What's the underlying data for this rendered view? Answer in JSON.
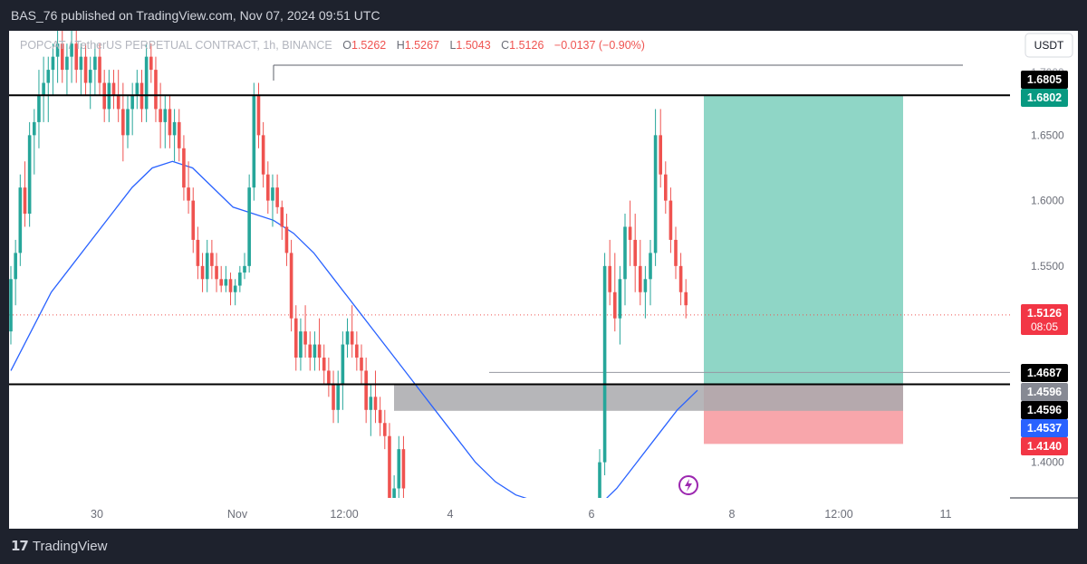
{
  "header": {
    "published": "BAS_76 published on TradingView.com, Nov 07, 2024 09:51 UTC"
  },
  "footer": {
    "brand": "TradingView"
  },
  "legend": {
    "symbol": "POPCAT / TetherUS PERPETUAL CONTRACT, 1h, BINANCE",
    "open_label": "O",
    "open": "1.5262",
    "high_label": "H",
    "high": "1.5267",
    "low_label": "L",
    "low": "1.5043",
    "close_label": "C",
    "close": "1.5126",
    "change": "−0.0137 (−0.90%)"
  },
  "currency_button": "USDT",
  "colors": {
    "up": "#26a69a",
    "down": "#ef5350",
    "ma": "#2962ff",
    "target_zone": "#8fd6c6",
    "stop_zone": "#f8a6ab",
    "demand_zone": "#a9a9ad"
  },
  "chart_data": {
    "type": "candlestick",
    "ylim": [
      1.37,
      1.72
    ],
    "price_ticks": [
      "1.4000",
      "1.5500",
      "1.6000",
      "1.6500"
    ],
    "x_ticks": [
      "30",
      "Nov",
      "12:00",
      "4",
      "6",
      "8",
      "12:00",
      "11"
    ],
    "price_labels": [
      {
        "text": "1.6805",
        "value": 1.6805,
        "style": "black"
      },
      {
        "text": "1.6802",
        "value": 1.6802,
        "style": "green"
      },
      {
        "text": "1.5126",
        "value": 1.5126,
        "style": "red",
        "sub": "08:05"
      },
      {
        "text": "1.4687",
        "value": 1.4687,
        "style": "black"
      },
      {
        "text": "1.4596",
        "value": 1.4596,
        "style": "gray"
      },
      {
        "text": "1.4596",
        "value": 1.4596,
        "style": "black"
      },
      {
        "text": "1.4537",
        "value": 1.4537,
        "style": "blue"
      },
      {
        "text": "1.4140",
        "value": 1.414,
        "style": "red"
      }
    ],
    "horizontal_lines": [
      1.6805,
      1.4596
    ],
    "top_level_line": 1.7,
    "last_price": 1.5126,
    "entry_level": 1.4687,
    "zones": {
      "target": {
        "top": 1.6802,
        "bottom": 1.4596
      },
      "stop": {
        "top": 1.4596,
        "bottom": 1.414
      },
      "demand": {
        "top": 1.4596,
        "bottom": 1.4393
      }
    },
    "candles": [
      [
        1.5,
        1.55,
        1.49,
        1.54
      ],
      [
        1.54,
        1.57,
        1.52,
        1.56
      ],
      [
        1.56,
        1.62,
        1.55,
        1.61
      ],
      [
        1.61,
        1.63,
        1.58,
        1.59
      ],
      [
        1.59,
        1.66,
        1.58,
        1.65
      ],
      [
        1.65,
        1.67,
        1.62,
        1.66
      ],
      [
        1.66,
        1.7,
        1.64,
        1.68
      ],
      [
        1.68,
        1.71,
        1.66,
        1.69
      ],
      [
        1.69,
        1.71,
        1.66,
        1.7
      ],
      [
        1.7,
        1.72,
        1.68,
        1.71
      ],
      [
        1.71,
        1.73,
        1.69,
        1.72
      ],
      [
        1.72,
        1.73,
        1.69,
        1.7
      ],
      [
        1.7,
        1.72,
        1.68,
        1.71
      ],
      [
        1.71,
        1.73,
        1.69,
        1.72
      ],
      [
        1.72,
        1.73,
        1.69,
        1.7
      ],
      [
        1.7,
        1.72,
        1.68,
        1.71
      ],
      [
        1.71,
        1.72,
        1.68,
        1.69
      ],
      [
        1.69,
        1.71,
        1.67,
        1.7
      ],
      [
        1.7,
        1.72,
        1.68,
        1.71
      ],
      [
        1.71,
        1.72,
        1.68,
        1.69
      ],
      [
        1.69,
        1.7,
        1.66,
        1.67
      ],
      [
        1.67,
        1.7,
        1.66,
        1.69
      ],
      [
        1.69,
        1.7,
        1.67,
        1.68
      ],
      [
        1.68,
        1.7,
        1.66,
        1.67
      ],
      [
        1.67,
        1.69,
        1.63,
        1.65
      ],
      [
        1.65,
        1.68,
        1.64,
        1.67
      ],
      [
        1.67,
        1.69,
        1.65,
        1.68
      ],
      [
        1.68,
        1.7,
        1.67,
        1.69
      ],
      [
        1.69,
        1.7,
        1.66,
        1.67
      ],
      [
        1.67,
        1.72,
        1.66,
        1.71
      ],
      [
        1.71,
        1.72,
        1.69,
        1.7
      ],
      [
        1.7,
        1.71,
        1.66,
        1.67
      ],
      [
        1.67,
        1.69,
        1.64,
        1.66
      ],
      [
        1.66,
        1.68,
        1.64,
        1.67
      ],
      [
        1.67,
        1.68,
        1.64,
        1.65
      ],
      [
        1.65,
        1.67,
        1.63,
        1.66
      ],
      [
        1.66,
        1.67,
        1.63,
        1.64
      ],
      [
        1.64,
        1.65,
        1.6,
        1.61
      ],
      [
        1.61,
        1.63,
        1.59,
        1.6
      ],
      [
        1.6,
        1.61,
        1.56,
        1.57
      ],
      [
        1.57,
        1.58,
        1.54,
        1.55
      ],
      [
        1.55,
        1.56,
        1.53,
        1.54
      ],
      [
        1.54,
        1.57,
        1.53,
        1.56
      ],
      [
        1.56,
        1.57,
        1.54,
        1.55
      ],
      [
        1.55,
        1.56,
        1.53,
        1.54
      ],
      [
        1.54,
        1.55,
        1.53,
        1.535
      ],
      [
        1.535,
        1.55,
        1.53,
        1.54
      ],
      [
        1.54,
        1.545,
        1.52,
        1.53
      ],
      [
        1.53,
        1.54,
        1.52,
        1.535
      ],
      [
        1.535,
        1.55,
        1.53,
        1.545
      ],
      [
        1.545,
        1.56,
        1.54,
        1.55
      ],
      [
        1.55,
        1.62,
        1.545,
        1.61
      ],
      [
        1.61,
        1.69,
        1.6,
        1.68
      ],
      [
        1.68,
        1.69,
        1.64,
        1.65
      ],
      [
        1.65,
        1.66,
        1.61,
        1.62
      ],
      [
        1.62,
        1.63,
        1.59,
        1.6
      ],
      [
        1.6,
        1.62,
        1.58,
        1.61
      ],
      [
        1.61,
        1.62,
        1.59,
        1.595
      ],
      [
        1.595,
        1.6,
        1.57,
        1.58
      ],
      [
        1.58,
        1.59,
        1.55,
        1.56
      ],
      [
        1.56,
        1.57,
        1.5,
        1.51
      ],
      [
        1.51,
        1.52,
        1.47,
        1.48
      ],
      [
        1.48,
        1.51,
        1.47,
        1.5
      ],
      [
        1.5,
        1.52,
        1.48,
        1.49
      ],
      [
        1.49,
        1.5,
        1.47,
        1.48
      ],
      [
        1.48,
        1.5,
        1.47,
        1.49
      ],
      [
        1.49,
        1.51,
        1.47,
        1.48
      ],
      [
        1.48,
        1.49,
        1.46,
        1.47
      ],
      [
        1.47,
        1.48,
        1.45,
        1.46
      ],
      [
        1.46,
        1.47,
        1.43,
        1.44
      ],
      [
        1.44,
        1.47,
        1.43,
        1.46
      ],
      [
        1.46,
        1.5,
        1.44,
        1.49
      ],
      [
        1.49,
        1.51,
        1.48,
        1.5
      ],
      [
        1.5,
        1.52,
        1.48,
        1.49
      ],
      [
        1.49,
        1.5,
        1.47,
        1.48
      ],
      [
        1.48,
        1.49,
        1.46,
        1.47
      ],
      [
        1.47,
        1.48,
        1.43,
        1.44
      ],
      [
        1.44,
        1.46,
        1.42,
        1.45
      ],
      [
        1.45,
        1.47,
        1.43,
        1.44
      ],
      [
        1.44,
        1.45,
        1.42,
        1.43
      ],
      [
        1.43,
        1.44,
        1.41,
        1.42
      ],
      [
        1.42,
        1.43,
        1.36,
        1.37
      ],
      [
        1.37,
        1.39,
        1.36,
        1.38
      ],
      [
        1.38,
        1.42,
        1.37,
        1.41
      ],
      [
        1.41,
        1.42,
        1.37,
        1.38
      ],
      [
        1.37,
        1.41,
        1.36,
        1.4
      ],
      [
        1.4,
        1.56,
        1.39,
        1.55
      ],
      [
        1.55,
        1.57,
        1.52,
        1.53
      ],
      [
        1.53,
        1.56,
        1.5,
        1.51
      ],
      [
        1.51,
        1.55,
        1.49,
        1.54
      ],
      [
        1.54,
        1.59,
        1.52,
        1.58
      ],
      [
        1.58,
        1.6,
        1.55,
        1.57
      ],
      [
        1.57,
        1.59,
        1.53,
        1.55
      ],
      [
        1.55,
        1.57,
        1.52,
        1.53
      ],
      [
        1.53,
        1.55,
        1.51,
        1.54
      ],
      [
        1.54,
        1.57,
        1.52,
        1.56
      ],
      [
        1.56,
        1.67,
        1.55,
        1.65
      ],
      [
        1.65,
        1.67,
        1.61,
        1.62
      ],
      [
        1.62,
        1.63,
        1.59,
        1.6
      ],
      [
        1.6,
        1.61,
        1.56,
        1.57
      ],
      [
        1.57,
        1.58,
        1.54,
        1.55
      ],
      [
        1.55,
        1.56,
        1.52,
        1.53
      ],
      [
        1.53,
        1.54,
        1.51,
        1.52
      ]
    ],
    "moving_average": [
      1.47,
      1.5,
      1.53,
      1.55,
      1.57,
      1.59,
      1.61,
      1.625,
      1.63,
      1.625,
      1.61,
      1.595,
      1.59,
      1.585,
      1.575,
      1.56,
      1.54,
      1.52,
      1.5,
      1.48,
      1.46,
      1.44,
      1.42,
      1.4,
      1.385,
      1.375,
      1.37,
      1.365,
      1.36,
      1.365,
      1.38,
      1.4,
      1.42,
      1.44,
      1.455
    ]
  }
}
